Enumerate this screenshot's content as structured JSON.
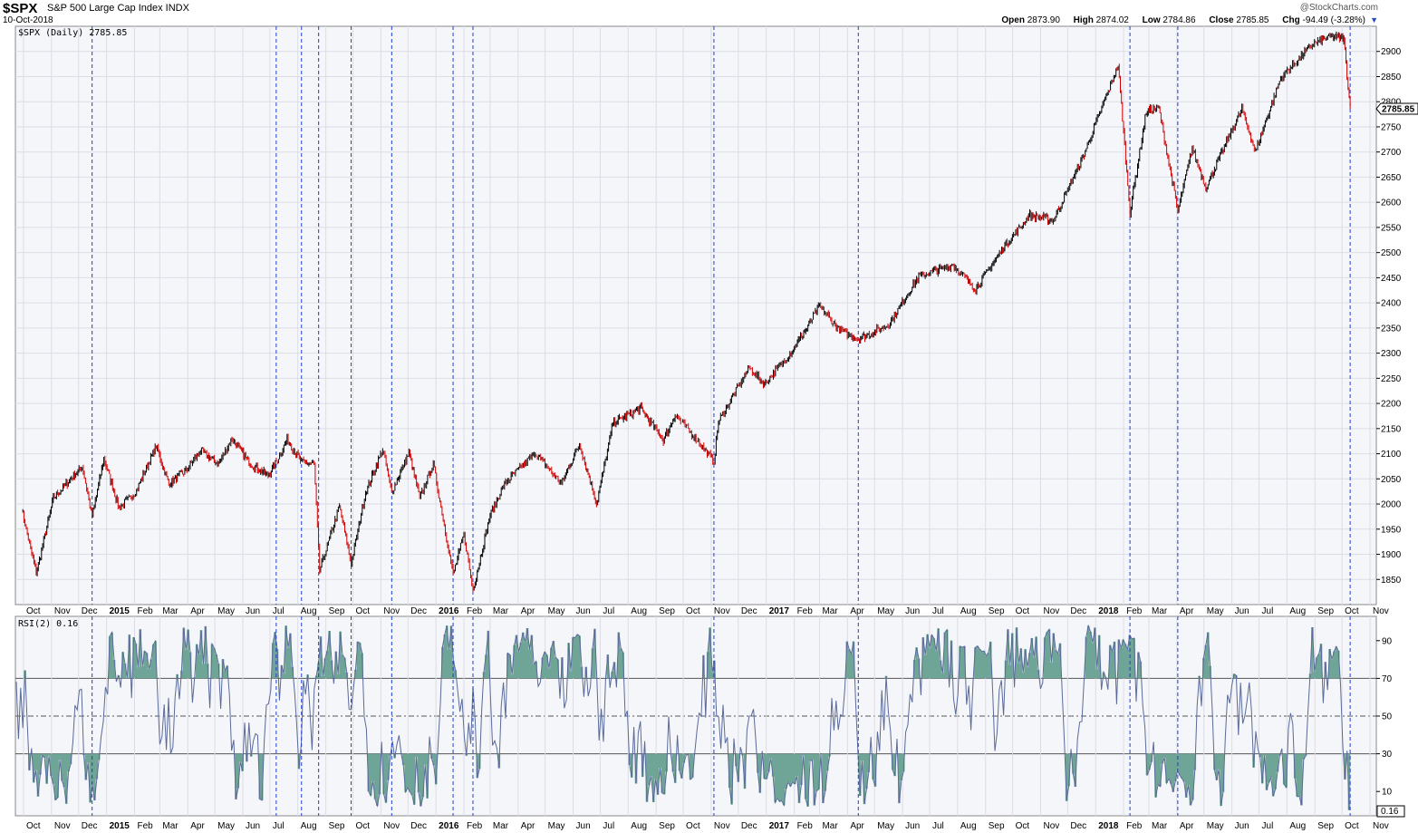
{
  "header": {
    "symbol": "$SPX",
    "name": "S&P 500 Large Cap Index  INDX",
    "date": "10-Oct-2018",
    "brand": "@StockCharts.com",
    "ohlc": {
      "open_label": "Open",
      "open": "2873.90",
      "high_label": "High",
      "high": "2874.02",
      "low_label": "Low",
      "low": "2784.86",
      "close_label": "Close",
      "close": "2785.85",
      "chg_label": "Chg",
      "chg": "-94.49 (-3.28%)"
    }
  },
  "colors": {
    "up_bar": "#000000",
    "down_bar": "#d40000",
    "rsi_line": "#5a6a9a",
    "rsi_fill": "#6fa596",
    "vline": "#1f3fcf",
    "grid": "#dcdce6",
    "panel_bg": "#f5f6fa"
  },
  "chart_data": [
    {
      "type": "line",
      "legend": "$SPX (Daily) 2785.85",
      "last_value_label": "2785.85",
      "ylim": [
        1800,
        2950
      ],
      "y_ticks": [
        1850,
        1900,
        1950,
        2000,
        2050,
        2100,
        2150,
        2200,
        2250,
        2300,
        2350,
        2400,
        2450,
        2500,
        2550,
        2600,
        2650,
        2700,
        2750,
        2800,
        2850,
        2900
      ],
      "x_ticks": [
        "Oct",
        "Nov",
        "Dec",
        "2015",
        "Feb",
        "Mar",
        "Apr",
        "May",
        "Jun",
        "Jul",
        "Aug",
        "Sep",
        "Oct",
        "Nov",
        "Dec",
        "2016",
        "Feb",
        "Mar",
        "Apr",
        "May",
        "Jun",
        "Jul",
        "Aug",
        "Sep",
        "Oct",
        "Nov",
        "Dec",
        "2017",
        "Feb",
        "Mar",
        "Apr",
        "May",
        "Jun",
        "Jul",
        "Aug",
        "Sep",
        "Oct",
        "Nov",
        "Dec",
        "2018",
        "Feb",
        "Mar",
        "Apr",
        "May",
        "Jun",
        "Jul",
        "Aug",
        "Sep",
        "Oct",
        "Nov"
      ],
      "x": [
        "2014-09-29",
        "2014-10-15",
        "2014-11-03",
        "2014-12-05",
        "2014-12-16",
        "2014-12-29",
        "2015-01-15",
        "2015-02-02",
        "2015-02-25",
        "2015-03-11",
        "2015-03-31",
        "2015-04-15",
        "2015-05-05",
        "2015-05-20",
        "2015-06-09",
        "2015-06-29",
        "2015-07-07",
        "2015-07-20",
        "2015-08-05",
        "2015-08-19",
        "2015-08-25",
        "2015-09-16",
        "2015-09-29",
        "2015-10-15",
        "2015-11-03",
        "2015-11-13",
        "2015-12-02",
        "2015-12-14",
        "2015-12-29",
        "2016-01-20",
        "2016-02-01",
        "2016-02-11",
        "2016-03-01",
        "2016-03-17",
        "2016-04-20",
        "2016-05-19",
        "2016-06-08",
        "2016-06-27",
        "2016-07-15",
        "2016-08-15",
        "2016-09-09",
        "2016-09-22",
        "2016-10-14",
        "2016-11-04",
        "2016-11-09",
        "2016-12-13",
        "2016-12-30",
        "2017-01-26",
        "2017-02-15",
        "2017-03-01",
        "2017-03-22",
        "2017-04-13",
        "2017-05-17",
        "2017-06-19",
        "2017-07-27",
        "2017-08-21",
        "2017-09-20",
        "2017-10-20",
        "2017-11-15",
        "2017-12-18",
        "2018-01-26",
        "2018-02-08",
        "2018-02-26",
        "2018-03-12",
        "2018-04-02",
        "2018-04-18",
        "2018-05-03",
        "2018-06-12",
        "2018-06-27",
        "2018-07-25",
        "2018-08-29",
        "2018-09-20",
        "2018-10-03",
        "2018-10-10"
      ],
      "values": [
        1990,
        1862,
        2011,
        2075,
        1975,
        2090,
        1992,
        2023,
        2115,
        2040,
        2068,
        2106,
        2080,
        2130,
        2080,
        2057,
        2081,
        2128,
        2083,
        2080,
        1867,
        1995,
        1882,
        2023,
        2108,
        2023,
        2102,
        2012,
        2080,
        1860,
        1940,
        1829,
        1978,
        2040,
        2102,
        2040,
        2120,
        2000,
        2161,
        2190,
        2127,
        2177,
        2133,
        2085,
        2163,
        2271,
        2239,
        2296,
        2350,
        2395,
        2348,
        2328,
        2357,
        2453,
        2475,
        2428,
        2508,
        2575,
        2564,
        2690,
        2873,
        2581,
        2780,
        2787,
        2582,
        2708,
        2629,
        2786,
        2700,
        2847,
        2914,
        2930,
        2925,
        2786
      ]
    },
    {
      "type": "area",
      "legend": "RSI(2) 0.16",
      "last_value_label": "0.16",
      "ylim": [
        0,
        100
      ],
      "y_ticks": [
        10,
        30,
        50,
        70,
        90
      ],
      "reference_lines": [
        30,
        50,
        70
      ],
      "x_ticks": [
        "Oct",
        "Nov",
        "Dec",
        "2015",
        "Feb",
        "Mar",
        "Apr",
        "May",
        "Jun",
        "Jul",
        "Aug",
        "Sep",
        "Oct",
        "Nov",
        "Dec",
        "2016",
        "Feb",
        "Mar",
        "Apr",
        "May",
        "Jun",
        "Jul",
        "Aug",
        "Sep",
        "Oct",
        "Nov",
        "Dec",
        "2017",
        "Feb",
        "Mar",
        "Apr",
        "May",
        "Jun",
        "Jul",
        "Aug",
        "Sep",
        "Oct",
        "Nov",
        "Dec",
        "2018",
        "Feb",
        "Mar",
        "Apr",
        "May",
        "Jun",
        "Jul",
        "Aug",
        "Sep",
        "Oct",
        "Nov"
      ]
    }
  ],
  "vertical_markers": [
    "2014-12-16",
    "2015-07-08",
    "2015-08-05",
    "2015-08-24",
    "2015-09-29",
    "2015-11-13",
    "2016-01-20",
    "2016-02-11",
    "2016-11-04",
    "2017-04-13",
    "2018-02-08",
    "2018-04-02",
    "2018-10-10"
  ]
}
